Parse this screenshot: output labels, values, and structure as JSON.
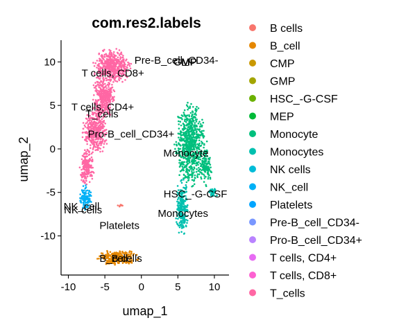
{
  "chart_data": {
    "type": "scatter",
    "title": "com.res2.labels",
    "xlabel": "umap_1",
    "ylabel": "umap_2",
    "xlim": [
      -11,
      12
    ],
    "ylim": [
      -14.5,
      12.5
    ],
    "xticks": [
      -10,
      -5,
      0,
      5,
      10
    ],
    "yticks": [
      -10,
      -5,
      0,
      5,
      10
    ],
    "grid": false,
    "legend_position": "right",
    "series": [
      {
        "name": "B cells",
        "color": "#F8766D"
      },
      {
        "name": "B_cell",
        "color": "#E58700"
      },
      {
        "name": "CMP",
        "color": "#C99800"
      },
      {
        "name": "GMP",
        "color": "#A3A500"
      },
      {
        "name": "HSC_-G-CSF",
        "color": "#6BB100"
      },
      {
        "name": "MEP",
        "color": "#00BA38"
      },
      {
        "name": "Monocyte",
        "color": "#00BF7D"
      },
      {
        "name": "Monocytes",
        "color": "#00C0AF"
      },
      {
        "name": "NK cells",
        "color": "#00BCD8"
      },
      {
        "name": "NK_cell",
        "color": "#00B0F6"
      },
      {
        "name": "Platelets",
        "color": "#00A5FF"
      },
      {
        "name": "Pre-B_cell_CD34-",
        "color": "#7997FF"
      },
      {
        "name": "Pro-B_cell_CD34+",
        "color": "#B983FF"
      },
      {
        "name": "T cells, CD4+",
        "color": "#E76BF3"
      },
      {
        "name": "T cells, CD8+",
        "color": "#FD61D1"
      },
      {
        "name": "T_cells",
        "color": "#FF67A4"
      }
    ],
    "clusters": [
      {
        "label": "T_cells",
        "color": "#FF67A4",
        "blobs": [
          {
            "cx": -4.0,
            "cy": 9.5,
            "rx": 2.6,
            "ry": 2.0,
            "n": 500
          },
          {
            "cx": -5.2,
            "cy": 6.0,
            "rx": 1.5,
            "ry": 2.5,
            "n": 350
          },
          {
            "cx": -6.3,
            "cy": 2.0,
            "rx": 1.8,
            "ry": 2.6,
            "n": 380
          },
          {
            "cx": -7.5,
            "cy": -2.0,
            "rx": 1.1,
            "ry": 2.0,
            "n": 200
          }
        ]
      },
      {
        "label": "NK_cell",
        "color": "#00B0F6",
        "blobs": [
          {
            "cx": -7.7,
            "cy": -5.6,
            "rx": 0.9,
            "ry": 1.4,
            "n": 110
          }
        ]
      },
      {
        "label": "Monocyte",
        "color": "#00BF7D",
        "blobs": [
          {
            "cx": 6.7,
            "cy": 0.5,
            "rx": 2.2,
            "ry": 4.7,
            "n": 750
          },
          {
            "cx": 8.8,
            "cy": -2.0,
            "rx": 0.9,
            "ry": 2.2,
            "n": 130
          }
        ]
      },
      {
        "label": "Monocytes",
        "color": "#00C0AF",
        "blobs": [
          {
            "cx": 5.6,
            "cy": -6.8,
            "rx": 0.9,
            "ry": 3.3,
            "n": 230
          },
          {
            "cx": 9.8,
            "cy": -5.0,
            "rx": 0.7,
            "ry": 0.6,
            "n": 40
          }
        ]
      },
      {
        "label": "B_cell",
        "color": "#E58700",
        "blobs": [
          {
            "cx": -3.2,
            "cy": -12.5,
            "rx": 2.8,
            "ry": 0.9,
            "n": 260
          }
        ]
      },
      {
        "label": "B cells",
        "color": "#F8766D",
        "blobs": [
          {
            "cx": -3.0,
            "cy": -6.5,
            "rx": 0.5,
            "ry": 0.15,
            "n": 10
          }
        ]
      }
    ],
    "annotations": [
      {
        "text": "Pre-B_cell_CD34-",
        "x": 4.8,
        "y": 10.2
      },
      {
        "text": "CMP",
        "x": 6.0,
        "y": 10.0
      },
      {
        "text": "GMP",
        "x": 6.0,
        "y": 10.0
      },
      {
        "text": "T cells, CD8+",
        "x": -3.9,
        "y": 8.7
      },
      {
        "text": "T cells, CD4+",
        "x": -5.3,
        "y": 4.8
      },
      {
        "text": "T_cells",
        "x": -5.4,
        "y": 4.0
      },
      {
        "text": "Pro-B_cell_CD34+",
        "x": -1.4,
        "y": 1.7
      },
      {
        "text": "Monocyte",
        "x": 6.1,
        "y": -0.5
      },
      {
        "text": "HSC_-G-CSF",
        "x": 7.4,
        "y": -5.2
      },
      {
        "text": "NK_cell",
        "x": -8.2,
        "y": -6.6
      },
      {
        "text": "NK cells",
        "x": -8.0,
        "y": -7.0
      },
      {
        "text": "Monocytes",
        "x": 5.7,
        "y": -7.4
      },
      {
        "text": "Platelets",
        "x": -3.0,
        "y": -8.8
      },
      {
        "text": "B_cell",
        "x": -3.8,
        "y": -12.6
      },
      {
        "text": "B cells",
        "x": -2.0,
        "y": -12.6
      }
    ]
  }
}
